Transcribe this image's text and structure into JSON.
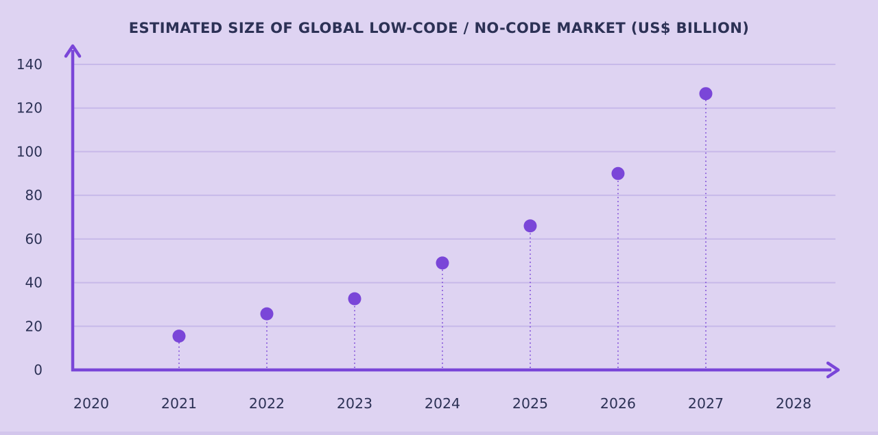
{
  "colors": {
    "background": "#ded3f2",
    "accent": "#7a46d8",
    "gridline": "#c7b9e9",
    "text": "#2c3155",
    "bottom_strip": "#d3c6ec"
  },
  "chart_data": {
    "type": "scatter",
    "title": "ESTIMATED SIZE OF GLOBAL LOW-CODE / NO-CODE MARKET (US$ BILLION)",
    "categories": [
      "2020",
      "2021",
      "2022",
      "2023",
      "2024",
      "2025",
      "2026",
      "2027",
      "2028"
    ],
    "values": [
      null,
      15.5,
      25.7,
      32.6,
      49,
      66,
      90,
      126.6,
      null
    ],
    "xlabel": "",
    "ylabel": "",
    "ylim": [
      0,
      140
    ],
    "ytick_step": 20,
    "yticks": [
      0,
      20,
      40,
      60,
      80,
      100,
      120,
      140
    ],
    "grid": true,
    "legend": false,
    "marker_style": "dot-with-dotted-stem"
  }
}
